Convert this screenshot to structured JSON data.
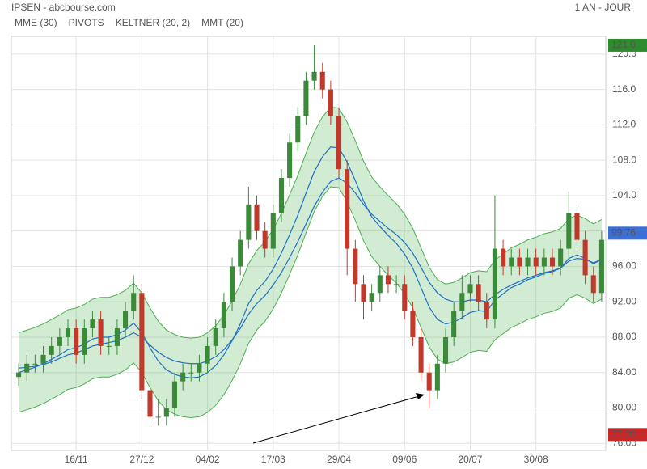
{
  "chart_data": {
    "type": "candlestick",
    "title": "IPSEN - abcbourse.com",
    "subtitle": "1 AN - JOUR",
    "pivots_label": "PIVOTS",
    "categories": [
      null,
      null,
      null,
      null,
      null,
      null,
      null,
      "16/11",
      null,
      null,
      null,
      null,
      null,
      null,
      null,
      "27/12",
      null,
      null,
      null,
      null,
      null,
      null,
      null,
      "04/02",
      null,
      null,
      null,
      null,
      null,
      null,
      null,
      "17/03",
      null,
      null,
      null,
      null,
      null,
      null,
      null,
      "29/04",
      null,
      null,
      null,
      null,
      null,
      null,
      null,
      "09/06",
      null,
      null,
      null,
      null,
      null,
      null,
      null,
      "20/07",
      null,
      null,
      null,
      null,
      null,
      null,
      null,
      "30/08",
      null,
      null,
      null,
      null,
      null,
      null,
      null,
      null
    ],
    "open": [
      83.5,
      84,
      85,
      85,
      86,
      87,
      88,
      89,
      86,
      89,
      90,
      87,
      87,
      89,
      91,
      93,
      82,
      79,
      79,
      80,
      83,
      84,
      84,
      85,
      87,
      89,
      92,
      96,
      99,
      103,
      100,
      98,
      102,
      106,
      110,
      113,
      117,
      118,
      116,
      113,
      107,
      98,
      94,
      92,
      93,
      95,
      94,
      94,
      91,
      88,
      84,
      82,
      85,
      88,
      91,
      93,
      94,
      92,
      90,
      98,
      96,
      97,
      96,
      97,
      96,
      97,
      96,
      98,
      102,
      99,
      95,
      93
    ],
    "high": [
      85,
      86,
      86,
      87,
      88,
      89,
      90,
      90,
      90,
      91,
      91,
      88,
      90,
      92,
      95,
      94,
      83,
      81,
      81,
      84,
      85,
      85,
      86,
      88,
      90,
      93,
      97,
      100,
      105,
      104,
      101,
      103,
      107,
      111,
      114,
      118,
      121,
      119,
      117,
      114,
      108,
      99,
      95,
      94,
      96,
      96,
      95,
      95,
      92,
      89,
      85,
      86,
      89,
      92,
      95,
      95,
      95,
      93,
      104,
      99,
      98,
      98,
      98,
      98,
      98,
      98,
      99,
      104.5,
      103,
      100,
      96,
      100
    ],
    "low": [
      82.5,
      83,
      84,
      84,
      85,
      86,
      87,
      85,
      85,
      88,
      86,
      86,
      86,
      88,
      90,
      81,
      78,
      78,
      78,
      79,
      82,
      83,
      83,
      84,
      86,
      88,
      91,
      95,
      98,
      99,
      97,
      97,
      101,
      105,
      109,
      112,
      116,
      115,
      112,
      106,
      95,
      92,
      90,
      91,
      92,
      93,
      93,
      90,
      87,
      83,
      80,
      81,
      84,
      87,
      90,
      92,
      91,
      89,
      89,
      95,
      95,
      95,
      95,
      95,
      95,
      95,
      95,
      97,
      98,
      94,
      92,
      92
    ],
    "close": [
      84,
      85,
      85,
      86,
      87,
      88,
      89,
      86,
      89,
      90,
      87,
      87,
      89,
      91,
      93,
      82,
      79,
      79,
      80,
      83,
      84,
      84,
      85,
      87,
      89,
      92,
      96,
      99,
      103,
      100,
      98,
      102,
      106,
      110,
      113,
      117,
      118,
      116,
      113,
      107,
      98,
      94,
      92,
      93,
      95,
      94,
      94,
      91,
      88,
      84,
      82,
      85,
      88,
      91,
      93,
      94,
      92,
      90,
      98,
      96,
      97,
      96,
      97,
      96,
      97,
      96,
      98,
      102,
      99,
      95,
      93,
      99
    ],
    "up_color": "#3a8a3a",
    "down_color": "#c0392b",
    "keltner": {
      "name": "KELTNER (20, 2)",
      "color": "#4caf50",
      "upper": [
        88.5,
        88.8,
        89.1,
        89.5,
        90,
        90.5,
        91.1,
        91.3,
        91.7,
        92.3,
        92.5,
        92.5,
        92.8,
        93.3,
        94.1,
        93,
        91.3,
        89.8,
        88.8,
        88.3,
        88,
        87.9,
        88,
        88.5,
        89.3,
        90.5,
        92.1,
        94,
        96.3,
        97.8,
        98.8,
        100.2,
        102,
        104.1,
        106.3,
        108.8,
        111.2,
        112.9,
        114,
        113.9,
        112.3,
        110.2,
        107.9,
        106.1,
        105,
        104,
        103.1,
        101.9,
        100.3,
        98.1,
        95.9,
        94.5,
        94,
        94.2,
        94.7,
        95.3,
        95.5,
        95.4,
        96.7,
        97.4,
        98.1,
        98.5,
        99,
        99.3,
        99.7,
        99.9,
        100.3,
        101.4,
        101.8,
        101.4,
        100.8,
        101.3
      ],
      "lower": [
        79.5,
        79.8,
        80.1,
        80.5,
        81,
        81.5,
        82.1,
        82.3,
        82.7,
        83.3,
        83.5,
        83.5,
        83.8,
        84.3,
        85.1,
        84,
        82.3,
        80.8,
        79.8,
        79.3,
        79,
        78.9,
        79,
        79.5,
        80.3,
        81.5,
        83.1,
        85,
        87.3,
        88.8,
        89.8,
        91.2,
        93,
        95.1,
        97.3,
        99.8,
        102.2,
        103.9,
        105,
        104.9,
        103.3,
        101.2,
        98.9,
        97.1,
        96,
        95,
        94.1,
        92.9,
        91.3,
        89.1,
        86.9,
        85.5,
        85,
        85.2,
        85.7,
        86.3,
        86.5,
        86.4,
        87.7,
        88.4,
        89.1,
        89.5,
        90,
        90.3,
        90.7,
        90.9,
        91.3,
        92.4,
        92.8,
        92.4,
        91.8,
        92.3
      ]
    },
    "series": [
      {
        "name": "MME (30)",
        "color": "#1f6fc5",
        "values": [
          84.5,
          84.6,
          84.7,
          84.9,
          85.2,
          85.6,
          86,
          86.2,
          86.6,
          87,
          87.2,
          87.4,
          87.6,
          88,
          88.5,
          88,
          87.1,
          86.3,
          85.7,
          85.3,
          85.1,
          85,
          85,
          85.3,
          85.8,
          86.6,
          87.7,
          89,
          90.6,
          91.8,
          92.7,
          93.9,
          95.3,
          97,
          98.8,
          100.8,
          102.8,
          104.4,
          105.6,
          106,
          105.4,
          104.3,
          103,
          101.9,
          101.1,
          100.3,
          99.6,
          98.7,
          97.5,
          95.9,
          94.2,
          93,
          92.3,
          92,
          92,
          92.2,
          92.2,
          92,
          92.8,
          93.4,
          93.9,
          94.3,
          94.7,
          95,
          95.3,
          95.5,
          95.8,
          96.6,
          96.9,
          96.8,
          96.4,
          96.8
        ]
      },
      {
        "name": "MMT (20)",
        "color": "#1f6fc5",
        "values": [
          84,
          84.3,
          84.6,
          85,
          85.5,
          86,
          86.6,
          86.8,
          87.2,
          87.8,
          88,
          88,
          88.3,
          88.8,
          89.6,
          88.5,
          86.8,
          85.3,
          84.3,
          83.8,
          83.5,
          83.4,
          83.5,
          84,
          84.8,
          86,
          87.6,
          89.5,
          91.8,
          93.3,
          94.3,
          95.7,
          97.5,
          99.6,
          101.8,
          104.3,
          106.7,
          108.4,
          109.5,
          109.4,
          107.8,
          105.7,
          103.4,
          101.6,
          100.5,
          99.5,
          98.6,
          97.4,
          95.8,
          93.6,
          91.4,
          90,
          89.5,
          89.7,
          90.2,
          90.8,
          91,
          90.9,
          92.2,
          92.9,
          93.6,
          94,
          94.5,
          94.8,
          95.2,
          95.4,
          95.8,
          96.9,
          97.3,
          96.9,
          96.3,
          96.8
        ]
      }
    ],
    "ylim": [
      75.2,
      122
    ],
    "yticks": [
      {
        "value": 76,
        "label": "76.00"
      },
      {
        "value": 80,
        "label": "80.00"
      },
      {
        "value": 84,
        "label": "84.00"
      },
      {
        "value": 88,
        "label": "88.00"
      },
      {
        "value": 92,
        "label": "92.00"
      },
      {
        "value": 96,
        "label": "96.00"
      },
      {
        "value": 100,
        "label": "100.0"
      },
      {
        "value": 104,
        "label": "104.0"
      },
      {
        "value": 108,
        "label": "108.0"
      },
      {
        "value": 112,
        "label": "112.0"
      },
      {
        "value": 116,
        "label": "116.0"
      },
      {
        "value": 120,
        "label": "120.0"
      }
    ],
    "price_markers": [
      {
        "value": 121,
        "label": "121.0",
        "color": "#2e8b2e"
      },
      {
        "value": 99.76,
        "label": "99.76",
        "color": "#3b6fd4"
      },
      {
        "value": 77,
        "label": "77.00",
        "color": "#c62828"
      }
    ],
    "grid": true
  }
}
